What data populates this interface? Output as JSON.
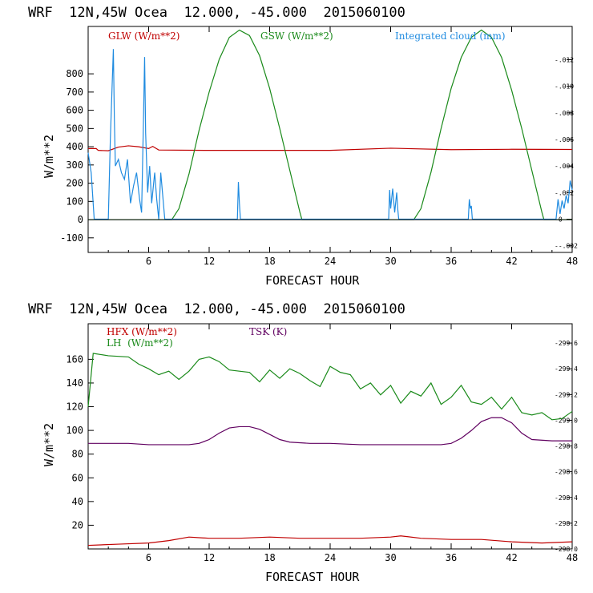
{
  "chart_data": [
    {
      "type": "line",
      "title": "WRF  12N,45W Ocea  12.000, -45.000  2015060100",
      "xlabel": "FORECAST HOUR",
      "ylabel": "W/m**2",
      "xlim": [
        0,
        48
      ],
      "ylim": [
        -180,
        1060
      ],
      "y2lim": [
        -0.0025,
        0.0145
      ],
      "xticks": [
        "6",
        "12",
        "18",
        "24",
        "30",
        "36",
        "42",
        "48"
      ],
      "yticks": [
        "-100",
        "0",
        "100",
        "200",
        "300",
        "400",
        "500",
        "600",
        "700",
        "800"
      ],
      "y2ticks": [
        "-.002",
        "0",
        ".002",
        ".004",
        ".006",
        ".008",
        ".010",
        ".012"
      ],
      "series": [
        {
          "name": "GLW (W/m**2)",
          "color": "#c00000",
          "axis": "left",
          "x": [
            0,
            0.8,
            1,
            2,
            3,
            4,
            5,
            6,
            6.4,
            7,
            12,
            18,
            24,
            30,
            36,
            42,
            48
          ],
          "y": [
            390,
            390,
            380,
            378,
            398,
            405,
            400,
            390,
            402,
            382,
            380,
            380,
            380,
            392,
            384,
            386,
            385
          ]
        },
        {
          "name": "GSW (W/m**2)",
          "color": "#1a8a1a",
          "axis": "left",
          "x": [
            0,
            8.3,
            9,
            10,
            11,
            12,
            13,
            14,
            15,
            16,
            17,
            18,
            19,
            20,
            21,
            21.2,
            32.3,
            33,
            34,
            35,
            36,
            37,
            38,
            39,
            40,
            41,
            42,
            43,
            44,
            45,
            45.2,
            48
          ],
          "y": [
            0,
            0,
            60,
            250,
            490,
            700,
            880,
            1000,
            1040,
            1010,
            900,
            720,
            500,
            270,
            40,
            0,
            0,
            60,
            260,
            500,
            720,
            890,
            1000,
            1040,
            1000,
            890,
            710,
            500,
            270,
            40,
            0,
            0
          ]
        },
        {
          "name": "Integrated cloud (mm)",
          "color": "#1f8be0",
          "axis": "right",
          "x": [
            0,
            0.3,
            0.6,
            1,
            1.5,
            2,
            2.2,
            2.5,
            2.6,
            2.7,
            3,
            3.3,
            3.6,
            3.9,
            4.2,
            4.5,
            4.8,
            5.1,
            5.3,
            5.5,
            5.6,
            5.7,
            5.9,
            6.1,
            6.3,
            6.6,
            6.8,
            7,
            7.2,
            7.6,
            14.8,
            14.9,
            15,
            15.1,
            29.8,
            29.9,
            30,
            30.2,
            30.4,
            30.6,
            30.7,
            30.8,
            37.7,
            37.8,
            37.9,
            38,
            38.1,
            46.4,
            46.6,
            46.8,
            47,
            47.2,
            47.4,
            47.6,
            47.8,
            48
          ],
          "y": [
            0.005,
            0.0035,
            0,
            0,
            0,
            0,
            0.006,
            0.0128,
            0.0075,
            0.004,
            0.0045,
            0.0035,
            0.003,
            0.0045,
            0.0012,
            0.0025,
            0.0035,
            0.0015,
            0.0005,
            0.008,
            0.0122,
            0.0065,
            0.002,
            0.004,
            0.0012,
            0.0035,
            0.0015,
            0,
            0.0035,
            0,
            0,
            0.0028,
            0.0012,
            0,
            0,
            0.0022,
            0.0008,
            0.0023,
            0.0005,
            0.002,
            0.0008,
            0,
            0,
            0.0015,
            0.0008,
            0.001,
            0,
            0,
            0.0015,
            0.0004,
            0.0014,
            0.0008,
            0.0018,
            0.0012,
            0.0029,
            0.0022
          ]
        }
      ]
    },
    {
      "type": "line",
      "title": "WRF  12N,45W Ocea  12.000, -45.000  2015060100",
      "xlabel": "FORECAST HOUR",
      "ylabel": "W/m**2",
      "xlim": [
        0,
        48
      ],
      "ylim": [
        0,
        190
      ],
      "y2lim": [
        298.0,
        299.75
      ],
      "xticks": [
        "6",
        "12",
        "18",
        "24",
        "30",
        "36",
        "42",
        "48"
      ],
      "yticks": [
        "20",
        "40",
        "60",
        "80",
        "100",
        "120",
        "140",
        "160"
      ],
      "y2ticks": [
        "298.0",
        "298.2",
        "298.4",
        "298.6",
        "298.8",
        "299.0",
        "299.2",
        "299.4",
        "299.6"
      ],
      "series": [
        {
          "name": "HFX (W/m**2)",
          "color": "#c00000",
          "axis": "left",
          "x": [
            0,
            3,
            6,
            8,
            10,
            12,
            15,
            18,
            21,
            24,
            27,
            30,
            31,
            33,
            36,
            39,
            42,
            45,
            48
          ],
          "y": [
            3,
            4,
            5,
            7,
            10,
            9,
            9,
            10,
            9,
            9,
            9,
            10,
            11,
            9,
            8,
            8,
            6,
            5,
            6
          ]
        },
        {
          "name": "LH  (W/m**2)",
          "color": "#1a8a1a",
          "axis": "left",
          "x": [
            0,
            0.5,
            2,
            4,
            5,
            6,
            7,
            8,
            9,
            10,
            11,
            12,
            13,
            14,
            15,
            16,
            17,
            18,
            19,
            20,
            21,
            22,
            23,
            24,
            25,
            26,
            27,
            28,
            29,
            30,
            31,
            32,
            33,
            34,
            35,
            36,
            37,
            38,
            39,
            40,
            41,
            42,
            43,
            44,
            45,
            46,
            47,
            48
          ],
          "y": [
            120,
            165,
            163,
            162,
            156,
            152,
            147,
            150,
            143,
            150,
            160,
            162,
            158,
            151,
            150,
            149,
            141,
            151,
            144,
            152,
            148,
            142,
            137,
            154,
            149,
            147,
            135,
            140,
            130,
            138,
            123,
            133,
            129,
            140,
            122,
            128,
            138,
            124,
            122,
            128,
            118,
            128,
            115,
            113,
            115,
            109,
            110,
            116
          ]
        },
        {
          "name": "TSK (K)",
          "color": "#600060",
          "axis": "right",
          "x": [
            0,
            2,
            4,
            6,
            8,
            10,
            11,
            12,
            13,
            14,
            15,
            16,
            17,
            18,
            19,
            20,
            22,
            24,
            27,
            30,
            33,
            35,
            36,
            37,
            38,
            39,
            40,
            41,
            42,
            43,
            44,
            46,
            48
          ],
          "y": [
            298.82,
            298.82,
            298.82,
            298.81,
            298.81,
            298.81,
            298.82,
            298.85,
            298.9,
            298.94,
            298.95,
            298.95,
            298.93,
            298.89,
            298.85,
            298.83,
            298.82,
            298.82,
            298.81,
            298.81,
            298.81,
            298.81,
            298.82,
            298.86,
            298.92,
            298.99,
            299.02,
            299.02,
            298.98,
            298.9,
            298.85,
            298.84,
            298.84
          ]
        }
      ]
    }
  ]
}
